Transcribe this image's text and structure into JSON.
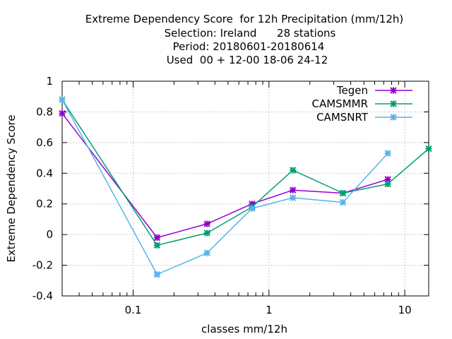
{
  "chart_data": {
    "type": "line",
    "title_lines": [
      "Extreme Dependency Score  for 12h Precipitation (mm/12h)",
      "Selection: Ireland      28 stations",
      "Period: 20180601-20180614",
      "Used  00 + 12-00 18-06 24-12"
    ],
    "xlabel": "classes mm/12h",
    "ylabel": "Extreme Dependency Score",
    "xscale": "log",
    "xlim": [
      0.03,
      15
    ],
    "ylim": [
      -0.4,
      1
    ],
    "yticks": [
      {
        "value": -0.4,
        "label": "-0.4"
      },
      {
        "value": -0.2,
        "label": "-0.2"
      },
      {
        "value": 0,
        "label": "0"
      },
      {
        "value": 0.2,
        "label": "0.2"
      },
      {
        "value": 0.4,
        "label": "0.4"
      },
      {
        "value": 0.6,
        "label": "0.6"
      },
      {
        "value": 0.8,
        "label": "0.8"
      },
      {
        "value": 1,
        "label": "1"
      }
    ],
    "xticks": [
      {
        "value": 0.1,
        "label": "0.1"
      },
      {
        "value": 1,
        "label": "1"
      },
      {
        "value": 10,
        "label": "10"
      }
    ],
    "grid": true,
    "legend_position": "top-right",
    "series": [
      {
        "name": "Tegen",
        "color": "#9400d3",
        "x": [
          0.03,
          0.15,
          0.35,
          0.75,
          1.5,
          3.5,
          7.5
        ],
        "y": [
          0.79,
          -0.02,
          0.07,
          0.2,
          0.29,
          0.27,
          0.36
        ]
      },
      {
        "name": "CAMSMMR",
        "color": "#009e73",
        "x": [
          0.03,
          0.15,
          0.35,
          0.75,
          1.5,
          3.5,
          7.5,
          15
        ],
        "y": [
          0.88,
          -0.07,
          0.01,
          0.18,
          0.42,
          0.27,
          0.33,
          0.56
        ]
      },
      {
        "name": "CAMSNRT",
        "color": "#56b4e9",
        "x": [
          0.03,
          0.15,
          0.35,
          0.75,
          1.5,
          3.5,
          7.5
        ],
        "y": [
          0.88,
          -0.26,
          -0.12,
          0.17,
          0.24,
          0.21,
          0.53
        ]
      }
    ]
  }
}
